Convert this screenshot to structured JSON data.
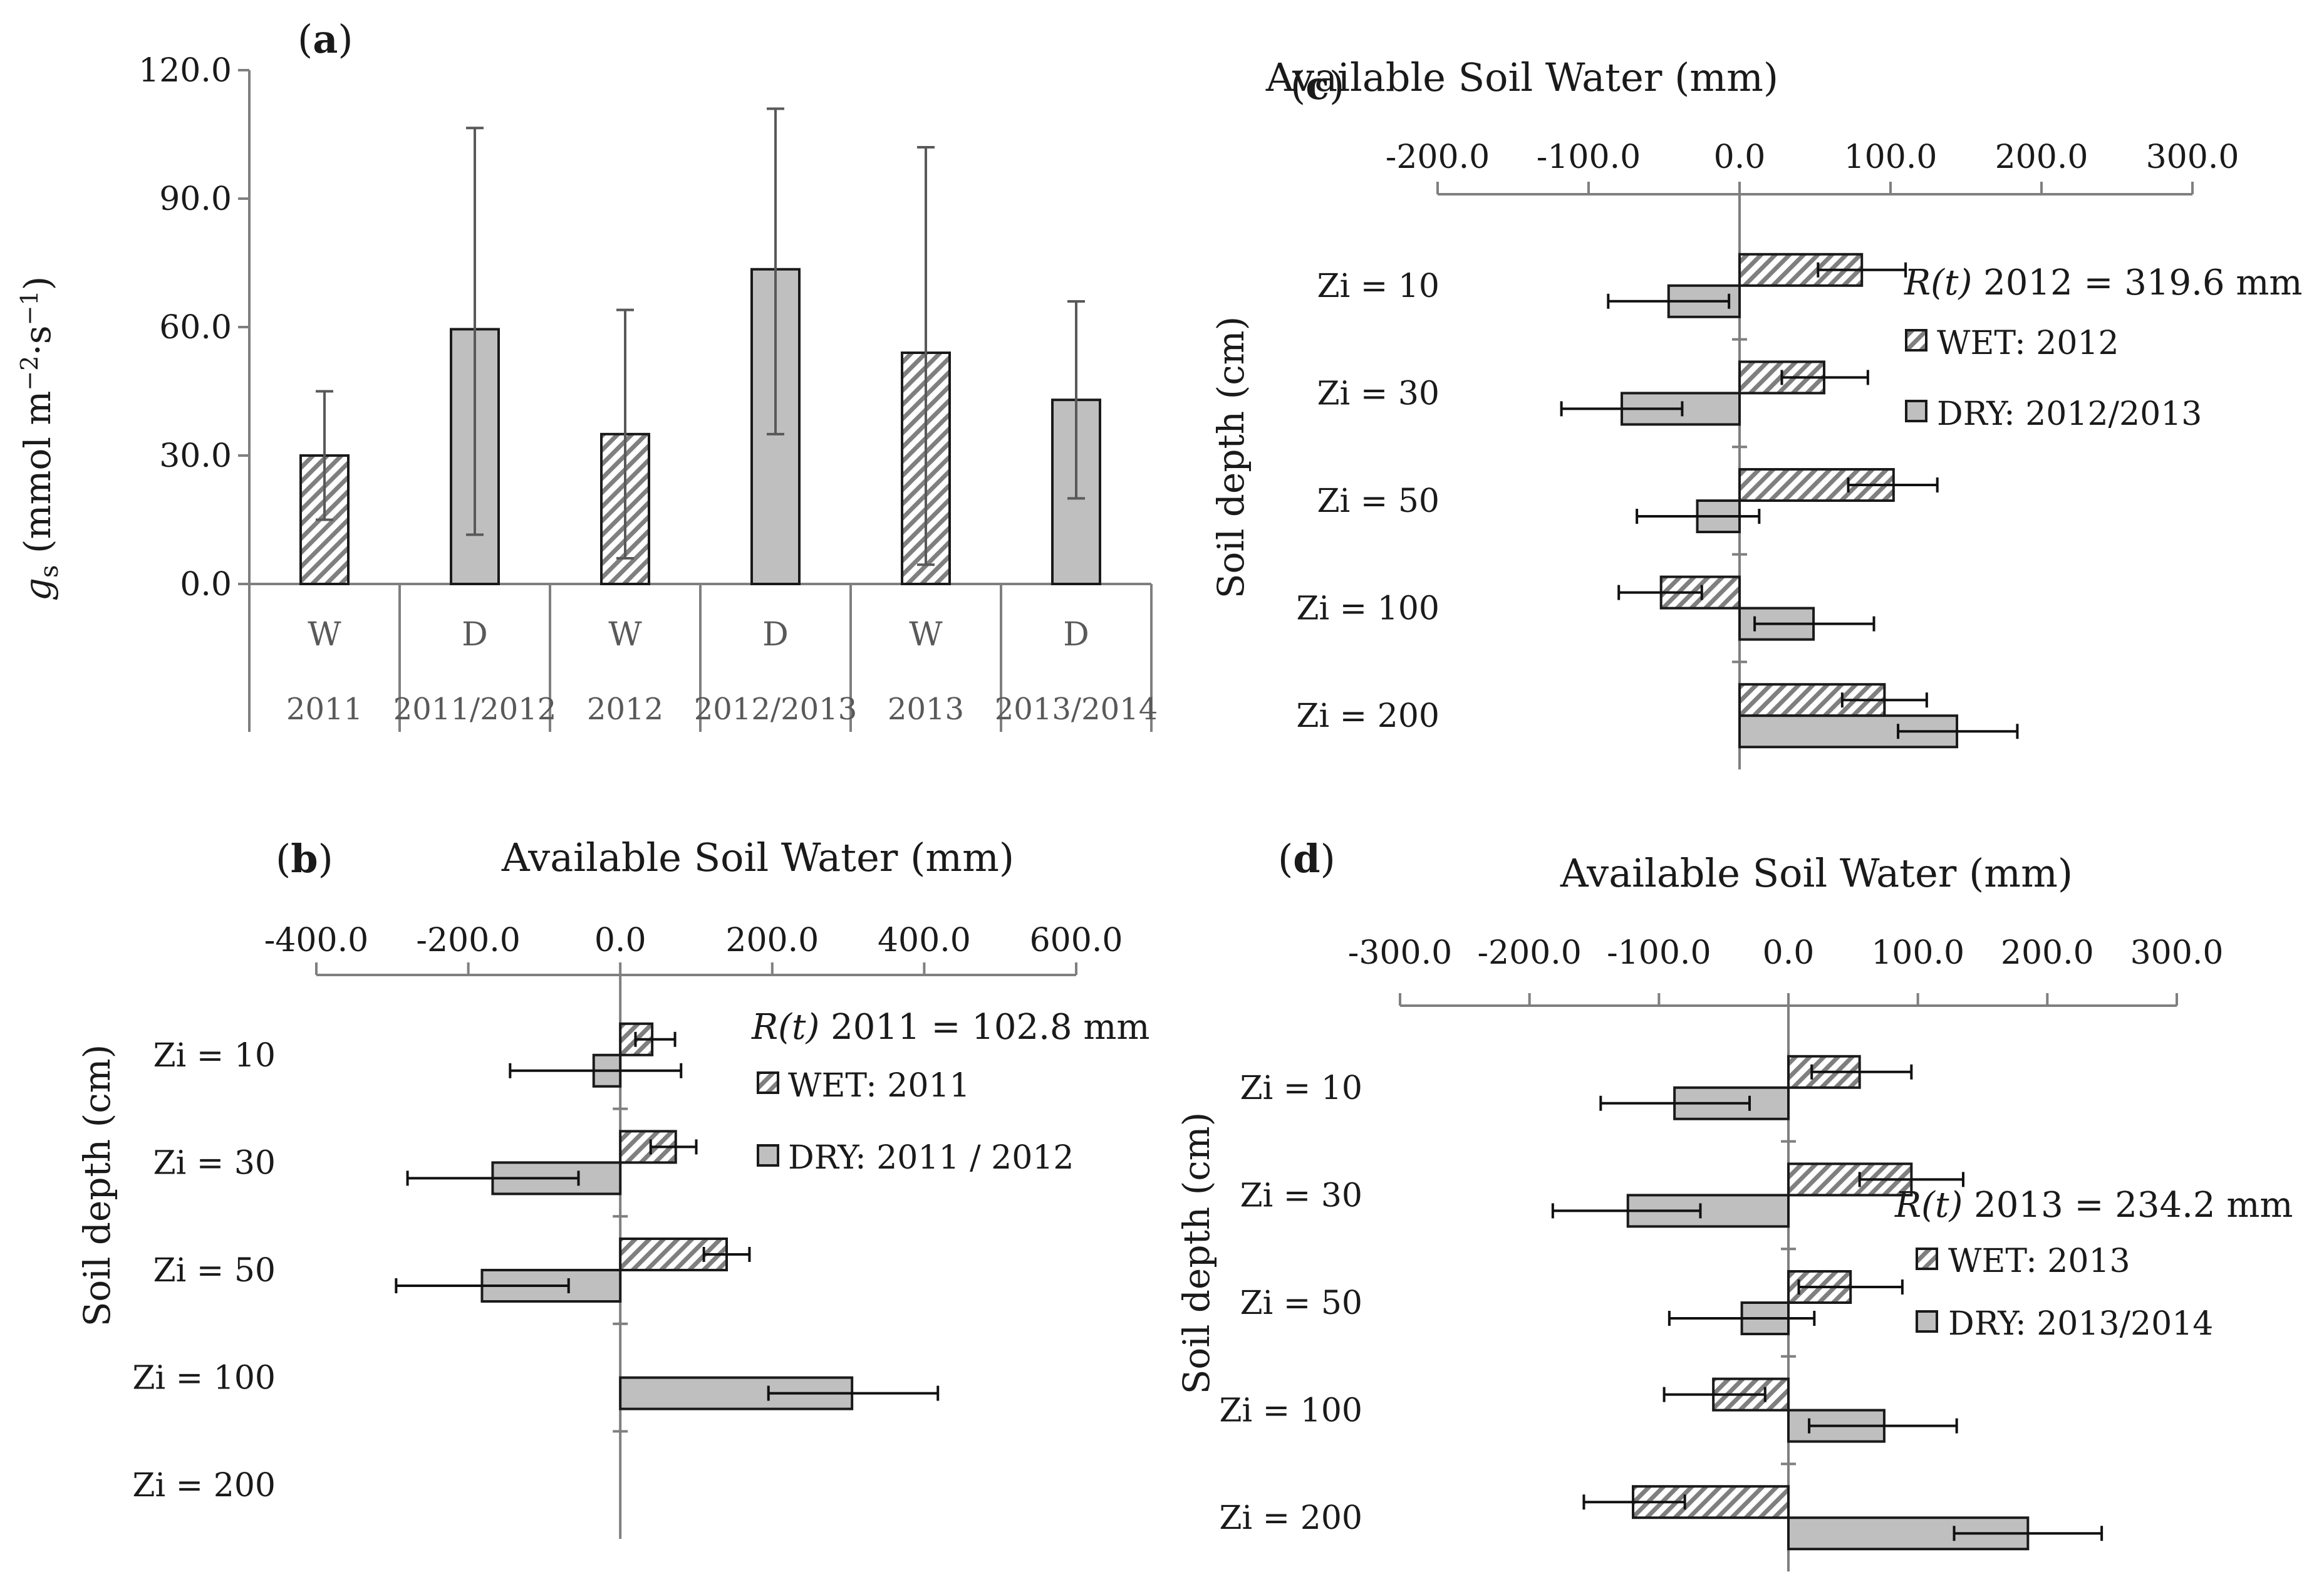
{
  "figure": {
    "colors": {
      "dry_fill": "#bfbfbf",
      "wet_hatch": "#7f7f7f",
      "axis": "#7f7f7f",
      "error": "#111111"
    }
  },
  "chart_data": [
    {
      "id": "a",
      "type": "bar",
      "panel_label": "(a)",
      "panel_letter": "a",
      "ylabel_symbol": "g",
      "ylabel_sub": "s",
      "ylabel_unit_pre": " (mmol m",
      "ylabel_exp1": "−2",
      "ylabel_mid": "·s",
      "ylabel_exp2": "−1",
      "ylabel_unit_post": ")",
      "ylim": [
        0,
        120
      ],
      "yticks": [
        "0.0",
        "30.0",
        "60.0",
        "90.0",
        "120.0"
      ],
      "yticks_values": [
        0,
        30,
        60,
        90,
        120
      ],
      "categories": [
        {
          "cond": "W",
          "year": "2011",
          "value": 30,
          "err_low": 15,
          "err_high": 45,
          "wet": true
        },
        {
          "cond": "D",
          "year": "2011/2012",
          "value": 59.5,
          "err_low": 11.5,
          "err_high": 106.5,
          "wet": false
        },
        {
          "cond": "W",
          "year": "2012",
          "value": 35,
          "err_low": 6,
          "err_high": 64,
          "wet": true
        },
        {
          "cond": "D",
          "year": "2012/2013",
          "value": 73.5,
          "err_low": 35,
          "err_high": 111,
          "wet": false
        },
        {
          "cond": "W",
          "year": "2013",
          "value": 54,
          "err_low": 4.5,
          "err_high": 102,
          "wet": true
        },
        {
          "cond": "D",
          "year": "2013/2014",
          "value": 43,
          "err_low": 20,
          "err_high": 66,
          "wet": false
        }
      ]
    },
    {
      "id": "b",
      "type": "bar",
      "orientation": "horizontal",
      "panel_label": "(b)",
      "panel_letter": "b",
      "title": "Available Soil Water (mm)",
      "ylabel": "Soil depth (cm)",
      "xlim": [
        -400,
        600
      ],
      "xticks": [
        "-400.0",
        "-200.0",
        "0.0",
        "200.0",
        "400.0",
        "600.0"
      ],
      "xticks_values": [
        -400,
        -200,
        0,
        200,
        400,
        600
      ],
      "depths": [
        "Zi = 10",
        "Zi = 30",
        "Zi = 50",
        "Zi = 100",
        "Zi = 200"
      ],
      "series": [
        {
          "name": "WET: 2011",
          "wet": true,
          "values": [
            42,
            73,
            140,
            null,
            null
          ],
          "err_low": [
            20,
            40,
            110,
            null,
            null
          ],
          "err_high": [
            72,
            100,
            170,
            null,
            null
          ]
        },
        {
          "name": "DRY: 2011 / 2012",
          "wet": false,
          "values": [
            -35,
            -168,
            -182,
            305,
            null
          ],
          "err_low": [
            -145,
            -280,
            -295,
            195,
            null
          ],
          "err_high": [
            80,
            -55,
            -68,
            418,
            null
          ]
        }
      ],
      "rt_var": "R(t)",
      "rt_rest": "  2011 = 102.8 mm"
    },
    {
      "id": "c",
      "type": "bar",
      "orientation": "horizontal",
      "panel_label": "(c)",
      "panel_letter": "c",
      "title": "Available Soil Water (mm)",
      "ylabel": "Soil depth (cm)",
      "xlim": [
        -200,
        300
      ],
      "xticks": [
        "-200.0",
        "-100.0",
        "0.0",
        "100.0",
        "200.0",
        "300.0"
      ],
      "xticks_values": [
        -200,
        -100,
        0,
        100,
        200,
        300
      ],
      "depths": [
        "Zi = 10",
        "Zi = 30",
        "Zi = 50",
        "Zi = 100",
        "Zi = 200"
      ],
      "series": [
        {
          "name": "WET: 2012",
          "wet": true,
          "values": [
            81,
            56,
            102,
            -52,
            96
          ],
          "err_low": [
            52,
            28,
            72,
            -80,
            68
          ],
          "err_high": [
            110,
            85,
            131,
            -25,
            124
          ]
        },
        {
          "name": "DRY: 2012/2013",
          "wet": false,
          "values": [
            -47,
            -78,
            -28,
            49,
            144
          ],
          "err_low": [
            -87,
            -118,
            -68,
            10,
            105
          ],
          "err_high": [
            -7,
            -38,
            13,
            89,
            184
          ]
        }
      ],
      "rt_var": "R(t)",
      "rt_rest": "  2012 = 319.6 mm"
    },
    {
      "id": "d",
      "type": "bar",
      "orientation": "horizontal",
      "panel_label": "(d)",
      "panel_letter": "d",
      "title": "Available Soil Water (mm)",
      "ylabel": "Soil depth (cm)",
      "xlim": [
        -300,
        300
      ],
      "xticks": [
        "-300.0",
        "-200.0",
        "-100.0",
        "0.0",
        "100.0",
        "200.0",
        "300.0"
      ],
      "xticks_values": [
        -300,
        -200,
        -100,
        0,
        100,
        200,
        300
      ],
      "depths": [
        "Zi = 10",
        "Zi = 30",
        "Zi = 50",
        "Zi = 100",
        "Zi = 200"
      ],
      "series": [
        {
          "name": "WET: 2013",
          "wet": true,
          "values": [
            55,
            95,
            48,
            -58,
            -120
          ],
          "err_low": [
            18,
            55,
            8,
            -96,
            -158
          ],
          "err_high": [
            95,
            135,
            88,
            -18,
            -80
          ]
        },
        {
          "name": "DRY: 2013/2014",
          "wet": false,
          "values": [
            -88,
            -124,
            -36,
            74,
            185
          ],
          "err_low": [
            -145,
            -182,
            -92,
            16,
            128
          ],
          "err_high": [
            -30,
            -68,
            20,
            130,
            242
          ]
        }
      ],
      "rt_var": "R(t)",
      "rt_rest": "  2013 = 234.2 mm"
    }
  ]
}
